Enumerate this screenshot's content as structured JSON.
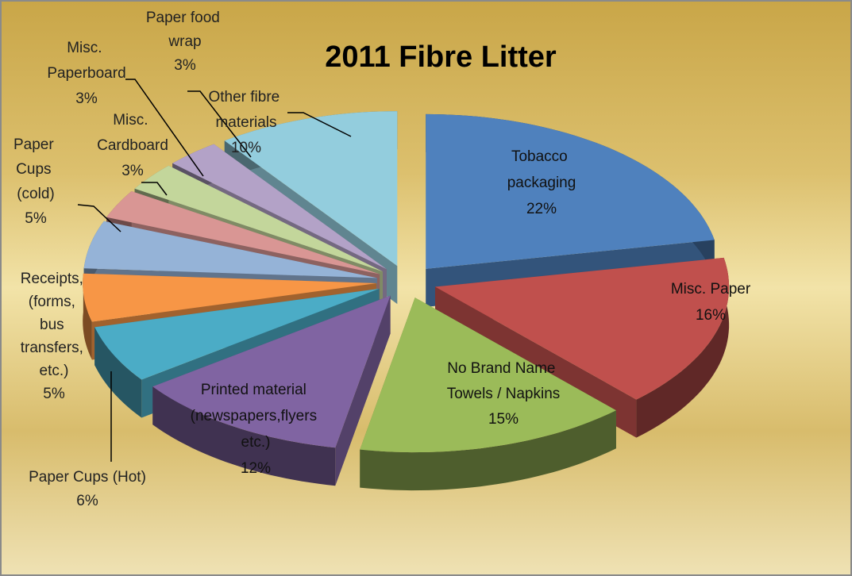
{
  "chart_data": {
    "type": "pie3d",
    "title": "2011 Fibre Litter",
    "categories": [
      "Tobacco packaging",
      "Misc. Paper",
      "No Brand Name Towels / Napkins",
      "Printed material (newspapers,flyers etc.)",
      "Paper Cups (Hot)",
      "Receipts, (forms, bus transfers, etc.)",
      "Paper Cups (cold)",
      "Misc. Cardboard",
      "Misc. Paperboard",
      "Paper food wrap",
      "Other fibre materials"
    ],
    "values": [
      22,
      16,
      15,
      12,
      6,
      5,
      5,
      3,
      3,
      3,
      10
    ],
    "value_labels": [
      "22%",
      "16%",
      "15%",
      "12%",
      "6%",
      "5%",
      "5%",
      "3%",
      "3%",
      "3%",
      "10%"
    ],
    "colors": [
      "#4f81bd",
      "#c0504d",
      "#9bbb59",
      "#8064a2",
      "#4bacc6",
      "#f79646",
      "#95b3d7",
      "#d99694",
      "#c3d69b",
      "#b3a2c7",
      "#93cddd"
    ]
  }
}
